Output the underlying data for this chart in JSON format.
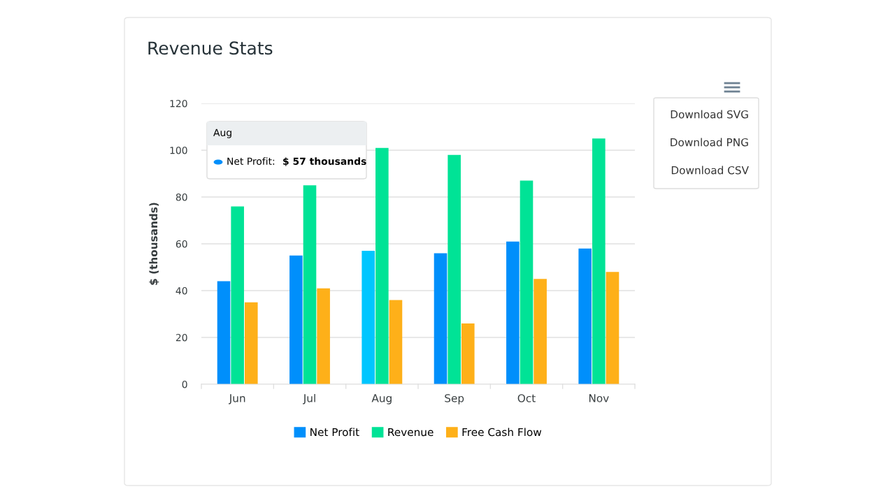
{
  "chart_data": {
    "type": "bar",
    "title": "Revenue Stats",
    "ylabel": "$ (thousands)",
    "categories": [
      "Jun",
      "Jul",
      "Aug",
      "Sep",
      "Oct",
      "Nov"
    ],
    "series": [
      {
        "name": "Net Profit",
        "color": "#008ffb",
        "colors": [
          "#008ffb",
          "#008ffb",
          "#00c6ff",
          "#008ffb",
          "#008ffb",
          "#008ffb"
        ],
        "values": [
          44,
          55,
          57,
          56,
          61,
          58
        ]
      },
      {
        "name": "Revenue",
        "color": "#00e396",
        "values": [
          76,
          85,
          101,
          98,
          87,
          105
        ]
      },
      {
        "name": "Free Cash Flow",
        "color": "#feb019",
        "values": [
          35,
          41,
          36,
          26,
          45,
          48
        ]
      }
    ],
    "ylim": [
      0,
      120
    ],
    "yticks": [
      0,
      20,
      40,
      60,
      80,
      100,
      120
    ],
    "grid": "y",
    "legend": "bottom",
    "annotations": [
      "Aug",
      "Net Profit:",
      "$ 57 thousands",
      "Download SVG",
      "Download PNG",
      "Download CSV"
    ]
  }
}
